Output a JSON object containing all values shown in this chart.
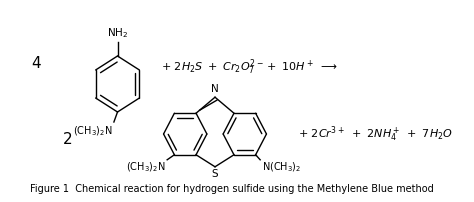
{
  "figsize": [
    4.74,
    2.02
  ],
  "dpi": 100,
  "bg_color": "#ffffff",
  "caption": "Figure 1  Chemical reaction for hydrogen sulfide using the Methylene Blue method",
  "caption_fontsize": 7.0,
  "top_coeff": "4",
  "bottom_coeff": "2",
  "top_nh2_label": "NH$_2$",
  "top_n_label": "(CH$_3$)$_2$N",
  "bottom_label_left": "(CH$_3$)$_2$N",
  "bottom_label_right": "N(CH$_3$)$_2$",
  "bottom_n_label": "N",
  "bottom_s_label": "S",
  "top_eq": "$+\\ 2H_2S\\ +\\ Cr_2O_7^{2-}+\\ 10H^+\\ \\longrightarrow$",
  "bottom_eq": "$+\\ 2Cr^{3+}\\ +\\ 2NH_4^+\\ +\\ 7H_2O$"
}
